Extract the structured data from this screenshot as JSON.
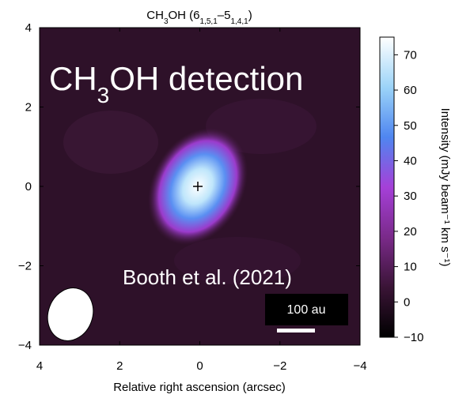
{
  "chart_data": {
    "type": "image",
    "title_parts": [
      "CH",
      "3",
      "OH (6",
      "1,5,1",
      "–5",
      "1,4,1",
      ")"
    ],
    "xlabel": "Relative right ascension (arcsec)",
    "xlim": [
      4,
      -4
    ],
    "xticks": [
      4,
      2,
      0,
      {
        "value": -2,
        "label": "−2"
      },
      {
        "value": -4,
        "label": "−4"
      }
    ],
    "ylim": [
      -4,
      4
    ],
    "yticks": [
      {
        "value": -4,
        "label": "−4"
      },
      {
        "value": -2,
        "label": "−2"
      },
      0,
      2,
      4
    ],
    "colorbar": {
      "label": "Intensity (mJy beam⁻¹ km s⁻¹)",
      "lim": [
        -10,
        75
      ],
      "ticks": [
        {
          "value": -10,
          "label": "−10"
        },
        0,
        10,
        20,
        30,
        40,
        50,
        60,
        70
      ],
      "colors": [
        "#000000",
        "#3a1436",
        "#7a2a8a",
        "#a540d8",
        "#4f86f0",
        "#9cd4f8",
        "#ffffff"
      ]
    },
    "overlay_parts": [
      "CH",
      "3",
      "OH detection"
    ],
    "citation": "Booth et al. (2021)",
    "scalebar": "100 au"
  }
}
